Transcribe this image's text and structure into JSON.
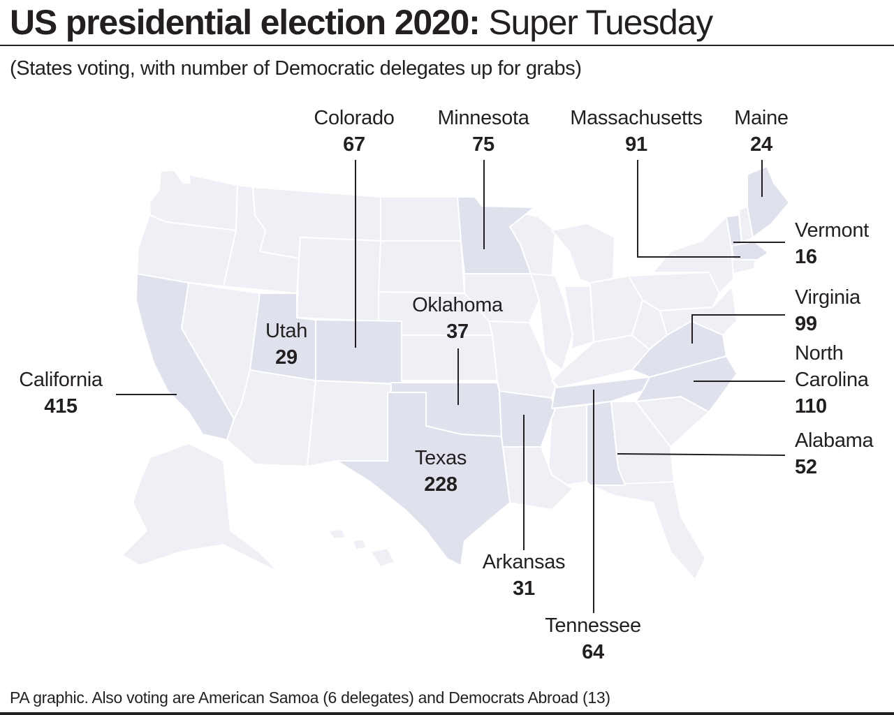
{
  "header": {
    "title_bold": "US presidential election 2020:",
    "title_light": "Super Tuesday",
    "subtitle": "(States voting, with number of Democratic delegates up for grabs)"
  },
  "footer": {
    "note": "PA graphic. Also voting are American Samoa (6 delegates) and Democrats Abroad (13)"
  },
  "colors": {
    "voting_state": "#dfe2ec",
    "other_state": "#eff0f6",
    "border": "#ffffff",
    "text": "#231f20",
    "leader_line": "#231f20"
  },
  "states": [
    {
      "name": "Colorado",
      "delegates": "67"
    },
    {
      "name": "Minnesota",
      "delegates": "75"
    },
    {
      "name": "Massachusetts",
      "delegates": "91"
    },
    {
      "name": "Maine",
      "delegates": "24"
    },
    {
      "name": "Vermont",
      "delegates": "16"
    },
    {
      "name": "Virginia",
      "delegates": "99"
    },
    {
      "name": "North Carolina",
      "name_line1": "North",
      "name_line2": "Carolina",
      "delegates": "110"
    },
    {
      "name": "Alabama",
      "delegates": "52"
    },
    {
      "name": "Tennessee",
      "delegates": "64"
    },
    {
      "name": "Arkansas",
      "delegates": "31"
    },
    {
      "name": "Texas",
      "delegates": "228"
    },
    {
      "name": "Oklahoma",
      "delegates": "37"
    },
    {
      "name": "Utah",
      "delegates": "29"
    },
    {
      "name": "California",
      "delegates": "415"
    }
  ]
}
